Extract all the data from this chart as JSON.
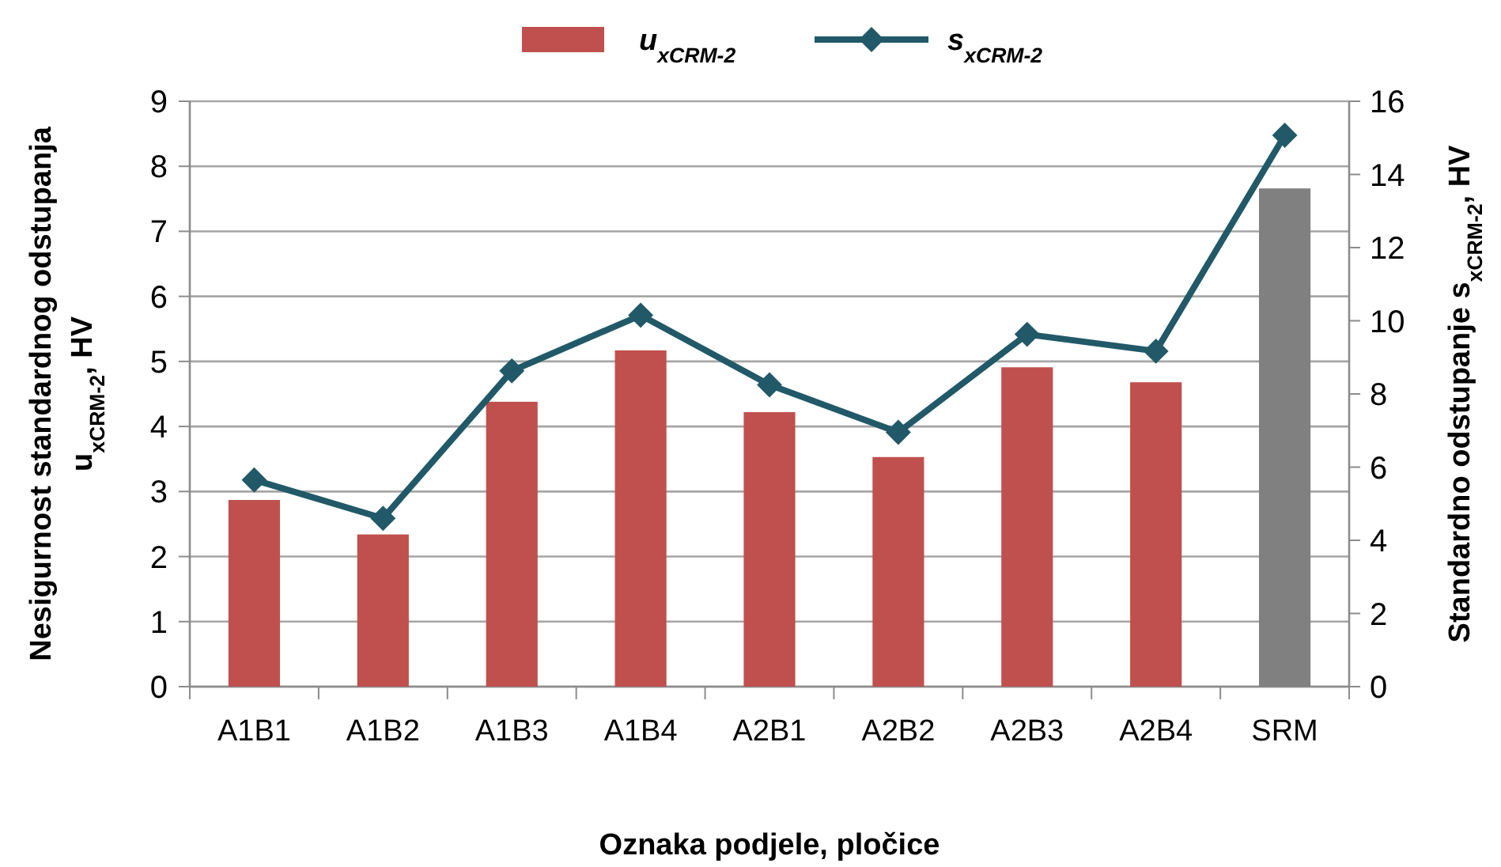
{
  "chart_data": {
    "type": "bar",
    "xlabel": "Oznaka podjele, pločice",
    "ylabel": "Nesigurnost standardnog odstupanja u$_{xCRM-2}$,  HV",
    "y2label": "Standardno odstupanje s$_{xCRM-2}$, HV",
    "categories": [
      "A1B1",
      "A1B2",
      "A1B3",
      "A1B4",
      "A2B1",
      "A2B2",
      "A2B3",
      "A2B4",
      "SRM"
    ],
    "series": [
      {
        "name": "u$_{xCRM-2}$",
        "colors": [
          "#c0504d",
          "#c0504d",
          "#c0504d",
          "#c0504d",
          "#c0504d",
          "#c0504d",
          "#c0504d",
          "#c0504d",
          "#808080"
        ],
        "color": "#c0504d",
        "values": [
          2.87,
          2.34,
          4.38,
          5.17,
          4.22,
          3.53,
          4.91,
          4.68,
          7.66
        ]
      },
      {
        "name": "s$_{xCRM-2}$",
        "type": "line",
        "axis": "y2",
        "color": "#215968",
        "marker": "diamond",
        "values": [
          5.65,
          4.6,
          8.63,
          10.15,
          8.25,
          6.95,
          9.63,
          9.17,
          15.07
        ]
      }
    ],
    "ylim": [
      0,
      9
    ],
    "yticks": [
      0,
      1,
      2,
      3,
      4,
      5,
      6,
      7,
      8,
      9
    ],
    "y2lim": [
      0,
      16
    ],
    "y2ticks": [
      0,
      2,
      4,
      6,
      8,
      10,
      12,
      14,
      16
    ],
    "grid": "y",
    "legend": "top"
  }
}
